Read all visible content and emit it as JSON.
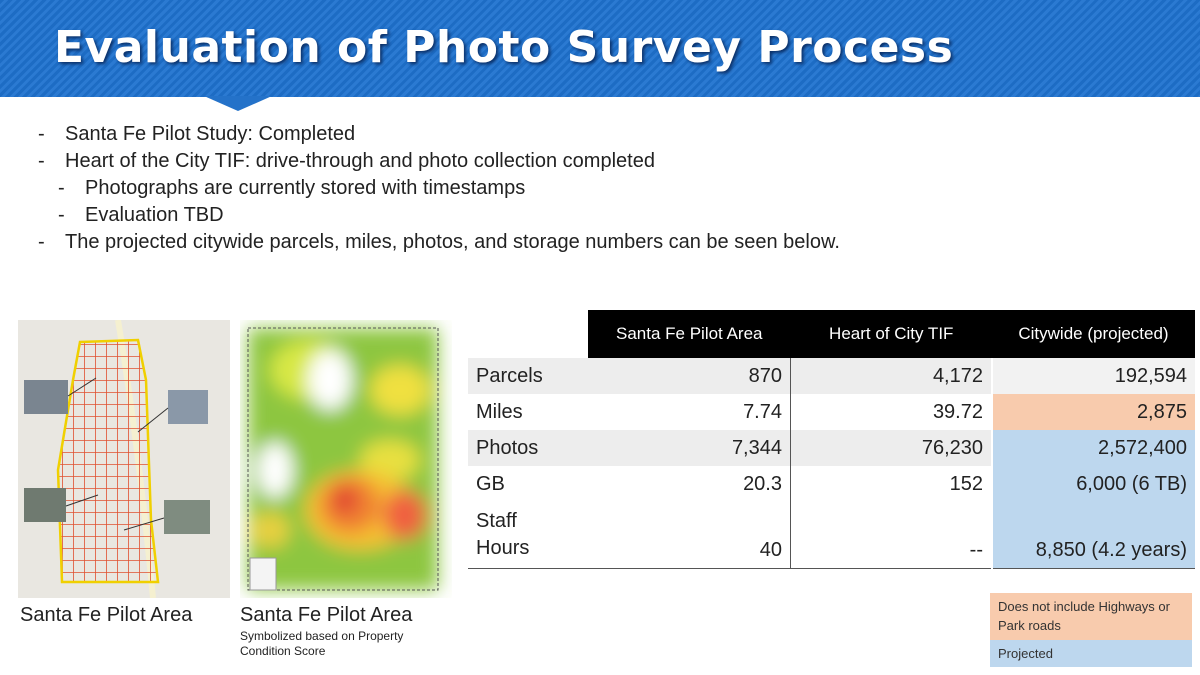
{
  "header": {
    "title": "Evaluation of Photo Survey Process"
  },
  "bullets": [
    {
      "text": "Santa Fe Pilot Study: Completed"
    },
    {
      "text": "Heart of the City TIF: drive-through and photo collection completed",
      "sub": [
        "Photographs are currently stored with timestamps",
        "Evaluation TBD"
      ]
    },
    {
      "text": "The projected citywide parcels, miles, photos, and storage numbers can be seen below."
    }
  ],
  "images": [
    {
      "caption": "Santa Fe Pilot Area"
    },
    {
      "caption": "Santa Fe Pilot Area",
      "note": "Symbolized based on Property Condition Score"
    }
  ],
  "table": {
    "columns": [
      "Santa Fe Pilot Area",
      "Heart of City TIF",
      "Citywide (projected)"
    ],
    "rows": [
      [
        "Parcels",
        "870",
        "4,172",
        "192,594"
      ],
      [
        "Miles",
        "7.74",
        "39.72",
        "2,875"
      ],
      [
        "Photos",
        "7,344",
        "76,230",
        "2,572,400"
      ],
      [
        "GB",
        "20.3",
        "152",
        "6,000 (6 TB)"
      ],
      [
        "Staff Hours",
        "40",
        "--",
        "8,850 (4.2 years)"
      ]
    ]
  },
  "legend": [
    "Does not include Highways or Park roads",
    "Projected"
  ]
}
